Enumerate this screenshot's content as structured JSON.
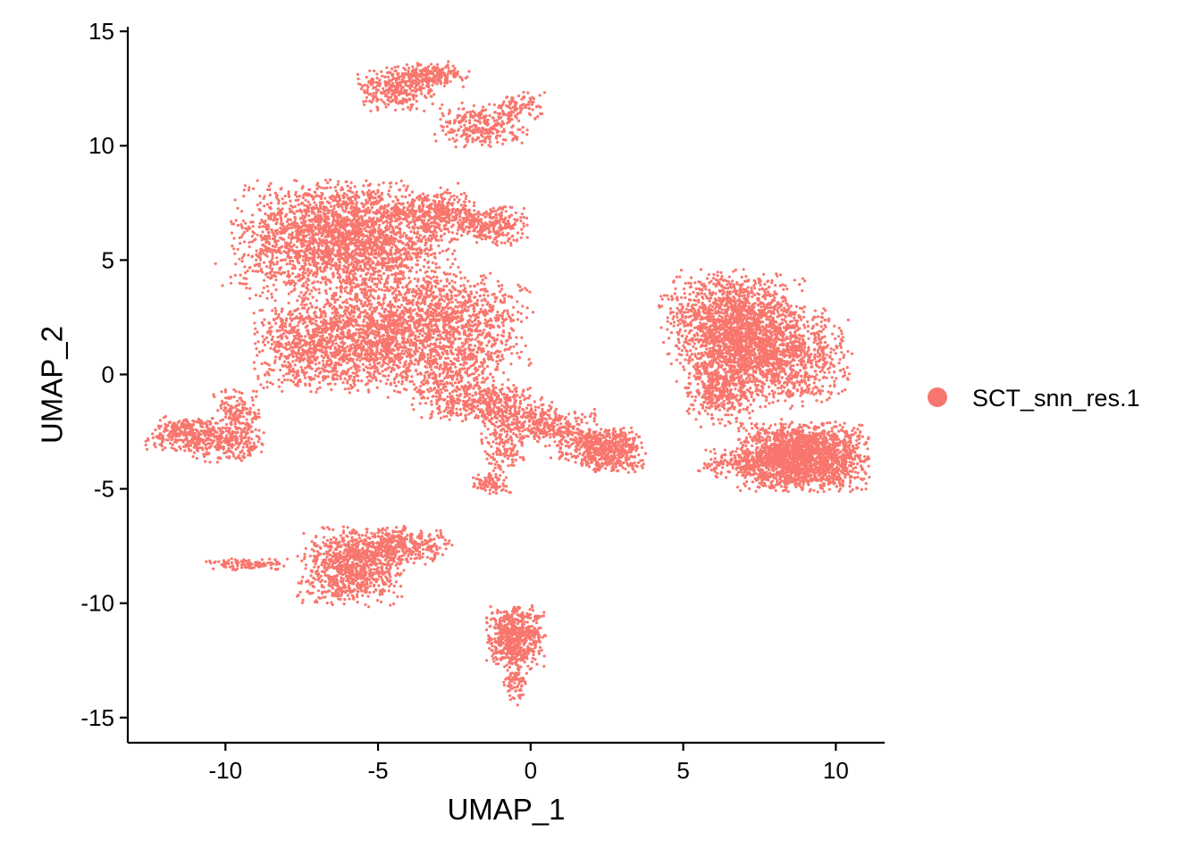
{
  "chart_data": {
    "type": "scatter",
    "xlabel": "UMAP_1",
    "ylabel": "UMAP_2",
    "xlim": [
      -13.2,
      11.6
    ],
    "ylim": [
      -16.1,
      15.2
    ],
    "x_ticks": [
      -10,
      -5,
      0,
      5,
      10
    ],
    "y_ticks": [
      -15,
      -10,
      -5,
      0,
      5,
      10,
      15
    ],
    "x_tick_labels": [
      "-10",
      "-5",
      "0",
      "5",
      "10"
    ],
    "y_tick_labels": [
      "-15",
      "-10",
      "-5",
      "0",
      "5",
      "10",
      "15"
    ],
    "grid": false,
    "legend_position": "right",
    "series": [
      {
        "name": "SCT_snn_res.1",
        "color": "#F8766D",
        "clusters": [
          {
            "cx": -6.1,
            "cy": 5.9,
            "sx": 1.7,
            "sy": 1.2,
            "n": 2600
          },
          {
            "cx": -6.7,
            "cy": 1.4,
            "sx": 1.1,
            "sy": 1.0,
            "n": 1200
          },
          {
            "cx": -3.2,
            "cy": 2.3,
            "sx": 1.5,
            "sy": 1.0,
            "n": 1400
          },
          {
            "cx": -4.6,
            "cy": 1.2,
            "sx": 0.4,
            "sy": 0.9,
            "n": 200
          },
          {
            "cx": -2.7,
            "cy": 0.0,
            "sx": 0.9,
            "sy": 0.8,
            "n": 400
          },
          {
            "cx": -1.5,
            "cy": -1.3,
            "sx": 1.0,
            "sy": 0.4,
            "n": 380
          },
          {
            "cx": 0.2,
            "cy": -2.2,
            "sx": 0.9,
            "sy": 0.35,
            "n": 340
          },
          {
            "cx": 1.8,
            "cy": -3.1,
            "sx": 0.6,
            "sy": 0.35,
            "n": 200
          },
          {
            "cx": 2.6,
            "cy": -3.3,
            "sx": 0.55,
            "sy": 0.45,
            "n": 420
          },
          {
            "cx": -0.9,
            "cy": -3.3,
            "sx": 0.35,
            "sy": 0.5,
            "n": 120
          },
          {
            "cx": -1.3,
            "cy": -4.8,
            "sx": 0.3,
            "sy": 0.2,
            "n": 90
          },
          {
            "cx": 6.6,
            "cy": 2.4,
            "sx": 1.1,
            "sy": 1.0,
            "n": 1300
          },
          {
            "cx": 7.6,
            "cy": 0.7,
            "sx": 1.3,
            "sy": 1.0,
            "n": 1500
          },
          {
            "cx": 6.2,
            "cy": -0.8,
            "sx": 0.5,
            "sy": 0.7,
            "n": 300
          },
          {
            "cx": 8.9,
            "cy": -3.6,
            "sx": 1.0,
            "sy": 0.7,
            "n": 2000
          },
          {
            "cx": 6.8,
            "cy": -3.9,
            "sx": 0.6,
            "sy": 0.3,
            "n": 200
          },
          {
            "cx": -11.3,
            "cy": -2.6,
            "sx": 0.6,
            "sy": 0.35,
            "n": 300
          },
          {
            "cx": -10.0,
            "cy": -3.0,
            "sx": 0.6,
            "sy": 0.4,
            "n": 260
          },
          {
            "cx": -9.6,
            "cy": -1.7,
            "sx": 0.4,
            "sy": 0.5,
            "n": 150
          },
          {
            "cx": -5.9,
            "cy": -8.4,
            "sx": 0.8,
            "sy": 0.8,
            "n": 900
          },
          {
            "cx": -4.3,
            "cy": -7.5,
            "sx": 0.8,
            "sy": 0.4,
            "n": 360
          },
          {
            "cx": -9.3,
            "cy": -8.3,
            "sx": 0.7,
            "sy": 0.12,
            "n": 100
          },
          {
            "cx": -0.5,
            "cy": -11.5,
            "sx": 0.45,
            "sy": 0.65,
            "n": 600
          },
          {
            "cx": -0.5,
            "cy": -13.3,
            "sx": 0.18,
            "sy": 0.6,
            "n": 100
          },
          {
            "cx": -4.4,
            "cy": 12.5,
            "sx": 0.6,
            "sy": 0.45,
            "n": 300
          },
          {
            "cx": -3.3,
            "cy": 13.1,
            "sx": 0.6,
            "sy": 0.25,
            "n": 200
          },
          {
            "cx": -1.6,
            "cy": 10.9,
            "sx": 0.7,
            "sy": 0.45,
            "n": 280
          },
          {
            "cx": -0.3,
            "cy": 11.7,
            "sx": 0.35,
            "sy": 0.3,
            "n": 90
          },
          {
            "cx": -2.9,
            "cy": 7.1,
            "sx": 0.5,
            "sy": 0.4,
            "n": 240
          },
          {
            "cx": -1.4,
            "cy": 6.5,
            "sx": 0.6,
            "sy": 0.4,
            "n": 300
          },
          {
            "cx": -4.3,
            "cy": 7.1,
            "sx": 0.4,
            "sy": 0.2,
            "n": 60
          }
        ]
      }
    ]
  }
}
